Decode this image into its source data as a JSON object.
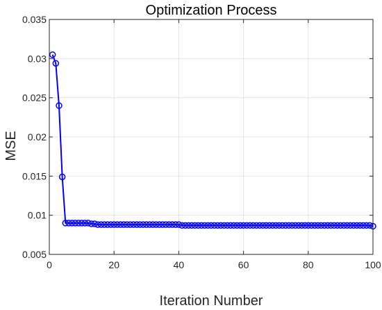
{
  "chart_data": {
    "type": "line",
    "title": "Optimization Process",
    "xlabel": "Iteration Number",
    "ylabel": "MSE",
    "xlim": [
      0,
      100
    ],
    "ylim": [
      0.005,
      0.035
    ],
    "xticks": [
      0,
      20,
      40,
      60,
      80,
      100
    ],
    "yticks": [
      0.005,
      0.01,
      0.015,
      0.02,
      0.025,
      0.03,
      0.035
    ],
    "xtick_labels": [
      "0",
      "20",
      "40",
      "60",
      "80",
      "100"
    ],
    "ytick_labels": [
      "0.005",
      "0.01",
      "0.015",
      "0.02",
      "0.025",
      "0.03",
      "0.035"
    ],
    "grid": true,
    "marker": "circle",
    "series": [
      {
        "color": "#0000ff",
        "x": [
          1,
          2,
          3,
          4,
          5,
          6,
          7,
          8,
          9,
          10,
          11,
          12,
          13,
          14,
          15,
          16,
          17,
          18,
          19,
          20,
          21,
          22,
          23,
          24,
          25,
          26,
          27,
          28,
          29,
          30,
          31,
          32,
          33,
          34,
          35,
          36,
          37,
          38,
          39,
          40,
          41,
          42,
          43,
          44,
          45,
          46,
          47,
          48,
          49,
          50,
          51,
          52,
          53,
          54,
          55,
          56,
          57,
          58,
          59,
          60,
          61,
          62,
          63,
          64,
          65,
          66,
          67,
          68,
          69,
          70,
          71,
          72,
          73,
          74,
          75,
          76,
          77,
          78,
          79,
          80,
          81,
          82,
          83,
          84,
          85,
          86,
          87,
          88,
          89,
          90,
          91,
          92,
          93,
          94,
          95,
          96,
          97,
          98,
          99,
          100
        ],
        "y": [
          0.0305,
          0.0294,
          0.024,
          0.0149,
          0.009,
          0.009,
          0.009,
          0.009,
          0.009,
          0.009,
          0.009,
          0.009,
          0.0089,
          0.0089,
          0.0088,
          0.0088,
          0.0088,
          0.0088,
          0.0088,
          0.0088,
          0.0088,
          0.0088,
          0.0088,
          0.0088,
          0.0088,
          0.0088,
          0.0088,
          0.0088,
          0.0088,
          0.0088,
          0.0088,
          0.0088,
          0.0088,
          0.0088,
          0.0088,
          0.0088,
          0.0088,
          0.0088,
          0.0088,
          0.0088,
          0.0087,
          0.0087,
          0.0087,
          0.0087,
          0.0087,
          0.0087,
          0.0087,
          0.0087,
          0.0087,
          0.0087,
          0.0087,
          0.0087,
          0.0087,
          0.0087,
          0.0087,
          0.0087,
          0.0087,
          0.0087,
          0.0087,
          0.0087,
          0.0087,
          0.0087,
          0.0087,
          0.0087,
          0.0087,
          0.0087,
          0.0087,
          0.0087,
          0.0087,
          0.0087,
          0.0087,
          0.0087,
          0.0087,
          0.0087,
          0.0087,
          0.0087,
          0.0087,
          0.0087,
          0.0087,
          0.0087,
          0.0087,
          0.0087,
          0.0087,
          0.0087,
          0.0087,
          0.0087,
          0.0087,
          0.0087,
          0.0087,
          0.0087,
          0.0087,
          0.0087,
          0.0087,
          0.0087,
          0.0087,
          0.0087,
          0.0087,
          0.0087,
          0.0087,
          0.0086
        ]
      }
    ]
  }
}
